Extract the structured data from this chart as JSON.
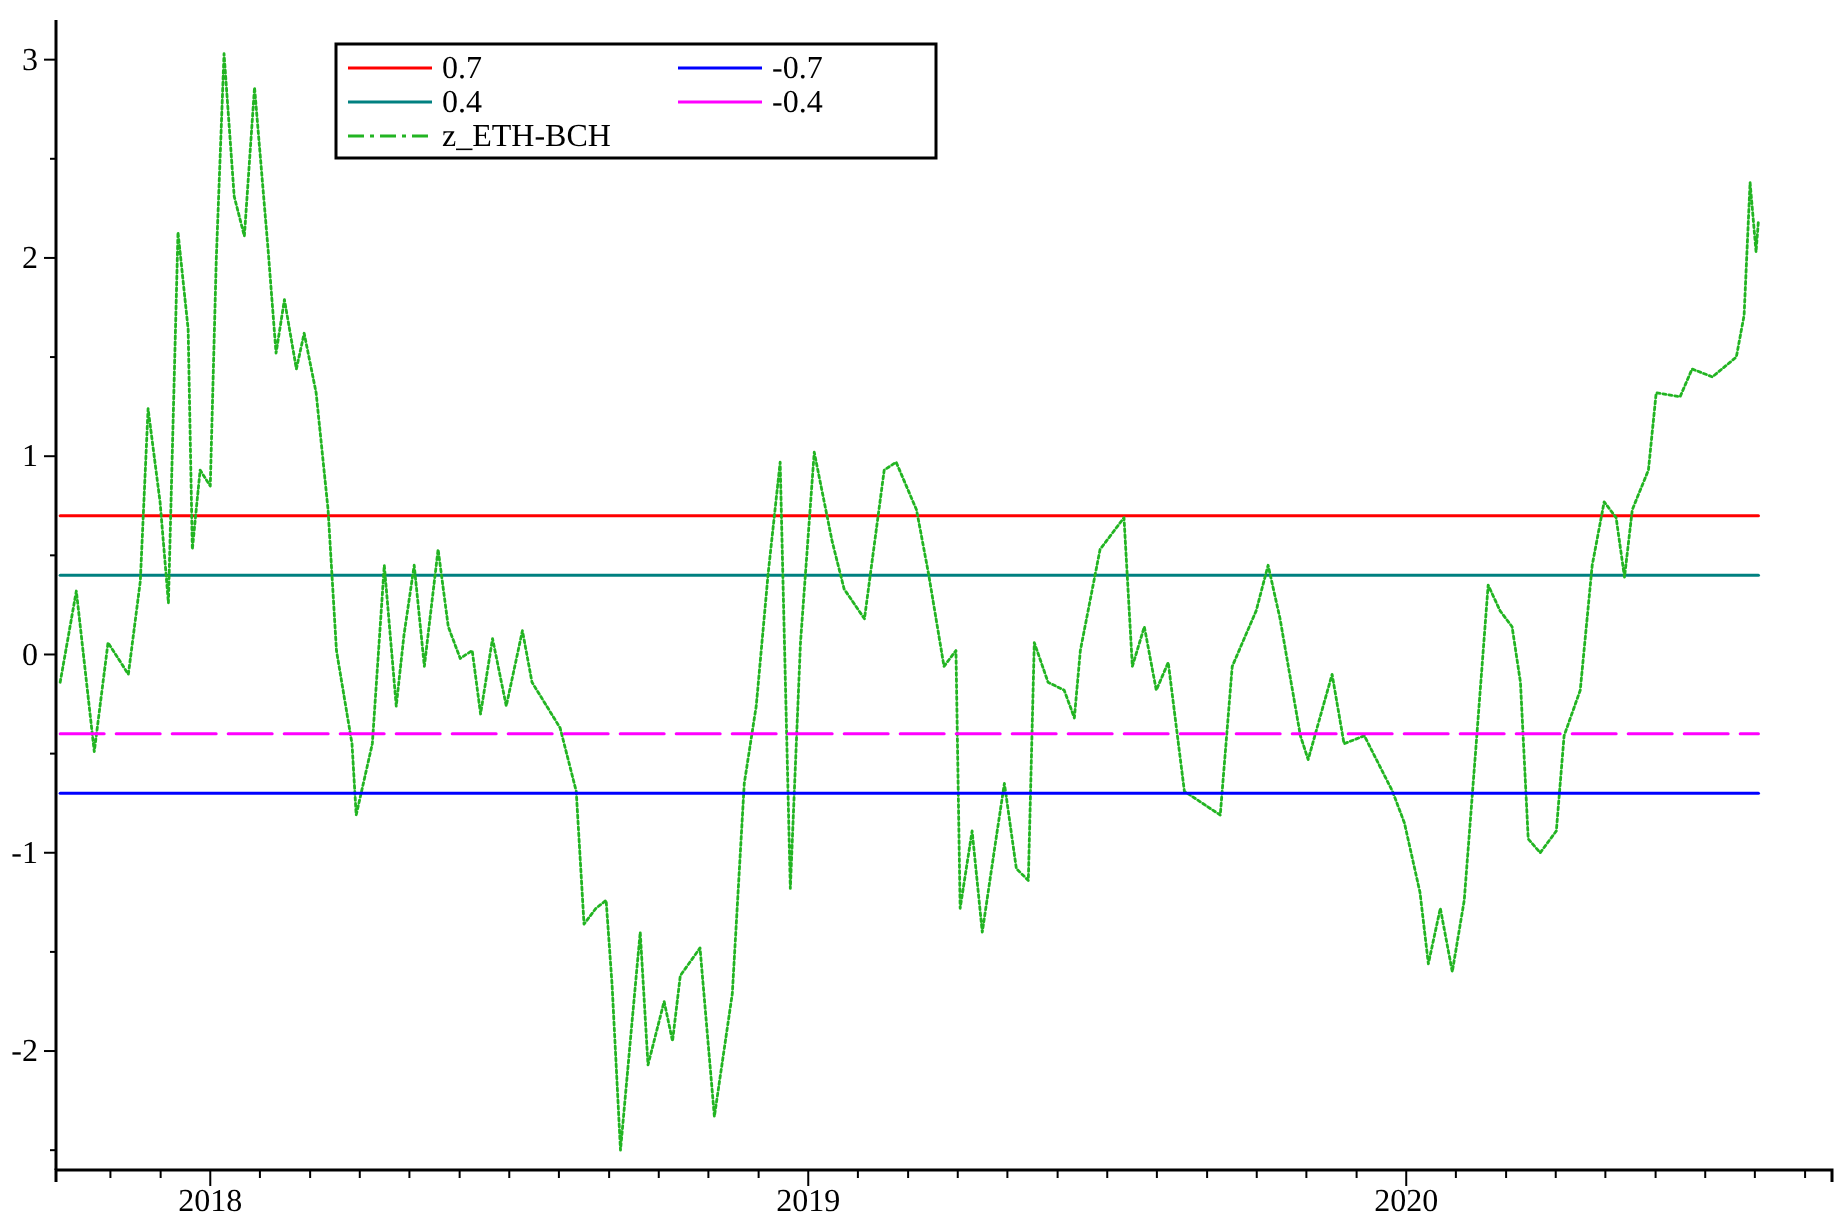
{
  "chart_data": {
    "type": "line",
    "xlim": [
      2017.742,
      2020.712
    ],
    "ylim": [
      -2.6,
      3.2
    ],
    "xticks": [
      {
        "value": 2017.833,
        "label": null
      },
      {
        "value": 2017.917,
        "label": null
      },
      2018,
      {
        "value": 2018.083,
        "label": null
      },
      {
        "value": 2018.167,
        "label": null
      },
      {
        "value": 2018.25,
        "label": null
      },
      {
        "value": 2018.333,
        "label": null
      },
      {
        "value": 2018.417,
        "label": null
      },
      {
        "value": 2018.5,
        "label": null
      },
      {
        "value": 2018.583,
        "label": null
      },
      {
        "value": 2018.667,
        "label": null
      },
      {
        "value": 2018.75,
        "label": null
      },
      {
        "value": 2018.833,
        "label": null
      },
      {
        "value": 2018.917,
        "label": null
      },
      2019,
      {
        "value": 2019.083,
        "label": null
      },
      {
        "value": 2019.167,
        "label": null
      },
      {
        "value": 2019.25,
        "label": null
      },
      {
        "value": 2019.333,
        "label": null
      },
      {
        "value": 2019.417,
        "label": null
      },
      {
        "value": 2019.5,
        "label": null
      },
      {
        "value": 2019.583,
        "label": null
      },
      {
        "value": 2019.667,
        "label": null
      },
      {
        "value": 2019.75,
        "label": null
      },
      {
        "value": 2019.833,
        "label": null
      },
      {
        "value": 2019.917,
        "label": null
      },
      2020,
      {
        "value": 2020.083,
        "label": null
      },
      {
        "value": 2020.167,
        "label": null
      },
      {
        "value": 2020.25,
        "label": null
      },
      {
        "value": 2020.333,
        "label": null
      },
      {
        "value": 2020.417,
        "label": null
      },
      {
        "value": 2020.5,
        "label": null
      },
      {
        "value": 2020.583,
        "label": null
      },
      {
        "value": 2020.667,
        "label": null
      }
    ],
    "yticks": [
      {
        "value": -2.5,
        "label": null
      },
      -2,
      {
        "value": -1.5,
        "label": null
      },
      -1,
      {
        "value": -0.5,
        "label": null
      },
      0,
      {
        "value": 0.5,
        "label": null
      },
      1,
      {
        "value": 1.5,
        "label": null
      },
      2,
      {
        "value": 2.5,
        "label": null
      },
      3
    ],
    "legend": "top left",
    "grid": false,
    "series": [
      {
        "name": "0.7",
        "color": "#ff0000",
        "line_style": "solid",
        "x": [
          2017.749,
          2020.589
        ],
        "values": [
          0.7,
          0.7
        ]
      },
      {
        "name": "0.4",
        "color": "#008080",
        "line_style": "solid",
        "x": [
          2017.749,
          2020.589
        ],
        "values": [
          0.4,
          0.4
        ]
      },
      {
        "name": "z_ETH-BCH",
        "color": "#22b422",
        "line_style": "dotted",
        "x": [
          2017.749,
          2017.776,
          2017.806,
          2017.829,
          2017.863,
          2017.883,
          2017.896,
          2017.916,
          2017.93,
          2017.946,
          2017.963,
          2017.97,
          2017.983,
          2018,
          2018.01,
          2018.023,
          2018.04,
          2018.057,
          2018.074,
          2018.097,
          2018.11,
          2018.124,
          2018.144,
          2018.157,
          2018.177,
          2018.197,
          2018.211,
          2018.237,
          2018.244,
          2018.271,
          2018.291,
          2018.311,
          2018.324,
          2018.341,
          2018.358,
          2018.381,
          2018.398,
          2018.418,
          2018.438,
          2018.452,
          2018.472,
          2018.495,
          2018.522,
          2018.538,
          2018.585,
          2018.612,
          2018.625,
          2018.645,
          2018.662,
          2018.672,
          2018.686,
          2018.706,
          2018.719,
          2018.732,
          2018.759,
          2018.773,
          2018.786,
          2018.819,
          2018.843,
          2018.873,
          2018.893,
          2018.913,
          2018.933,
          2018.953,
          2018.97,
          2018.987,
          2019.01,
          2019.04,
          2019.06,
          2019.094,
          2019.127,
          2019.147,
          2019.181,
          2019.201,
          2019.227,
          2019.247,
          2019.254,
          2019.274,
          2019.291,
          2019.314,
          2019.328,
          2019.348,
          2019.368,
          2019.378,
          2019.401,
          2019.428,
          2019.445,
          2019.455,
          2019.488,
          2019.528,
          2019.542,
          2019.562,
          2019.582,
          2019.602,
          2019.629,
          2019.689,
          2019.709,
          2019.749,
          2019.769,
          2019.789,
          2019.823,
          2019.836,
          2019.876,
          2019.896,
          2019.93,
          2019.977,
          2019.997,
          2020.023,
          2020.037,
          2020.057,
          2020.077,
          2020.097,
          2020.117,
          2020.137,
          2020.157,
          2020.177,
          2020.191,
          2020.204,
          2020.224,
          2020.251,
          2020.264,
          2020.291,
          2020.311,
          2020.331,
          2020.351,
          2020.365,
          2020.378,
          2020.405,
          2020.418,
          2020.458,
          2020.478,
          2020.512,
          2020.552,
          2020.565,
          2020.575,
          2020.585,
          2020.589
        ],
        "values": [
          -0.14,
          0.32,
          -0.49,
          0.06,
          -0.1,
          0.37,
          1.24,
          0.77,
          0.26,
          2.13,
          1.64,
          0.53,
          0.93,
          0.85,
          1.99,
          3.03,
          2.31,
          2.11,
          2.86,
          2.03,
          1.52,
          1.79,
          1.44,
          1.62,
          1.32,
          0.73,
          0.02,
          -0.45,
          -0.81,
          -0.45,
          0.45,
          -0.26,
          0.1,
          0.45,
          -0.06,
          0.53,
          0.14,
          -0.02,
          0.02,
          -0.3,
          0.08,
          -0.26,
          0.12,
          -0.14,
          -0.37,
          -0.69,
          -1.36,
          -1.28,
          -1.24,
          -1.67,
          -2.5,
          -1.83,
          -1.4,
          -2.07,
          -1.75,
          -1.95,
          -1.62,
          -1.48,
          -2.33,
          -1.71,
          -0.65,
          -0.26,
          0.41,
          0.97,
          -1.18,
          0.06,
          1.02,
          0.57,
          0.33,
          0.18,
          0.93,
          0.97,
          0.73,
          0.41,
          -0.06,
          0.02,
          -1.28,
          -0.89,
          -1.4,
          -0.93,
          -0.65,
          -1.08,
          -1.14,
          0.06,
          -0.14,
          -0.18,
          -0.32,
          0.02,
          0.53,
          0.69,
          -0.06,
          0.14,
          -0.18,
          -0.04,
          -0.69,
          -0.81,
          -0.06,
          0.22,
          0.45,
          0.18,
          -0.41,
          -0.53,
          -0.1,
          -0.45,
          -0.41,
          -0.69,
          -0.85,
          -1.2,
          -1.56,
          -1.28,
          -1.6,
          -1.24,
          -0.45,
          0.35,
          0.22,
          0.14,
          -0.14,
          -0.93,
          -1,
          -0.89,
          -0.41,
          -0.18,
          0.45,
          0.77,
          0.69,
          0.39,
          0.73,
          0.93,
          1.32,
          1.3,
          1.44,
          1.4,
          1.5,
          1.71,
          2.38,
          2.03,
          2.19
        ]
      },
      {
        "name": "-0.7",
        "color": "#0000ff",
        "line_style": "solid",
        "x": [
          2017.749,
          2020.589
        ],
        "values": [
          -0.7,
          -0.7
        ]
      },
      {
        "name": "-0.4",
        "color": "#ff00ff",
        "line_style": "dashed",
        "x": [
          2017.749,
          2020.589
        ],
        "values": [
          -0.4,
          -0.4
        ]
      }
    ]
  }
}
